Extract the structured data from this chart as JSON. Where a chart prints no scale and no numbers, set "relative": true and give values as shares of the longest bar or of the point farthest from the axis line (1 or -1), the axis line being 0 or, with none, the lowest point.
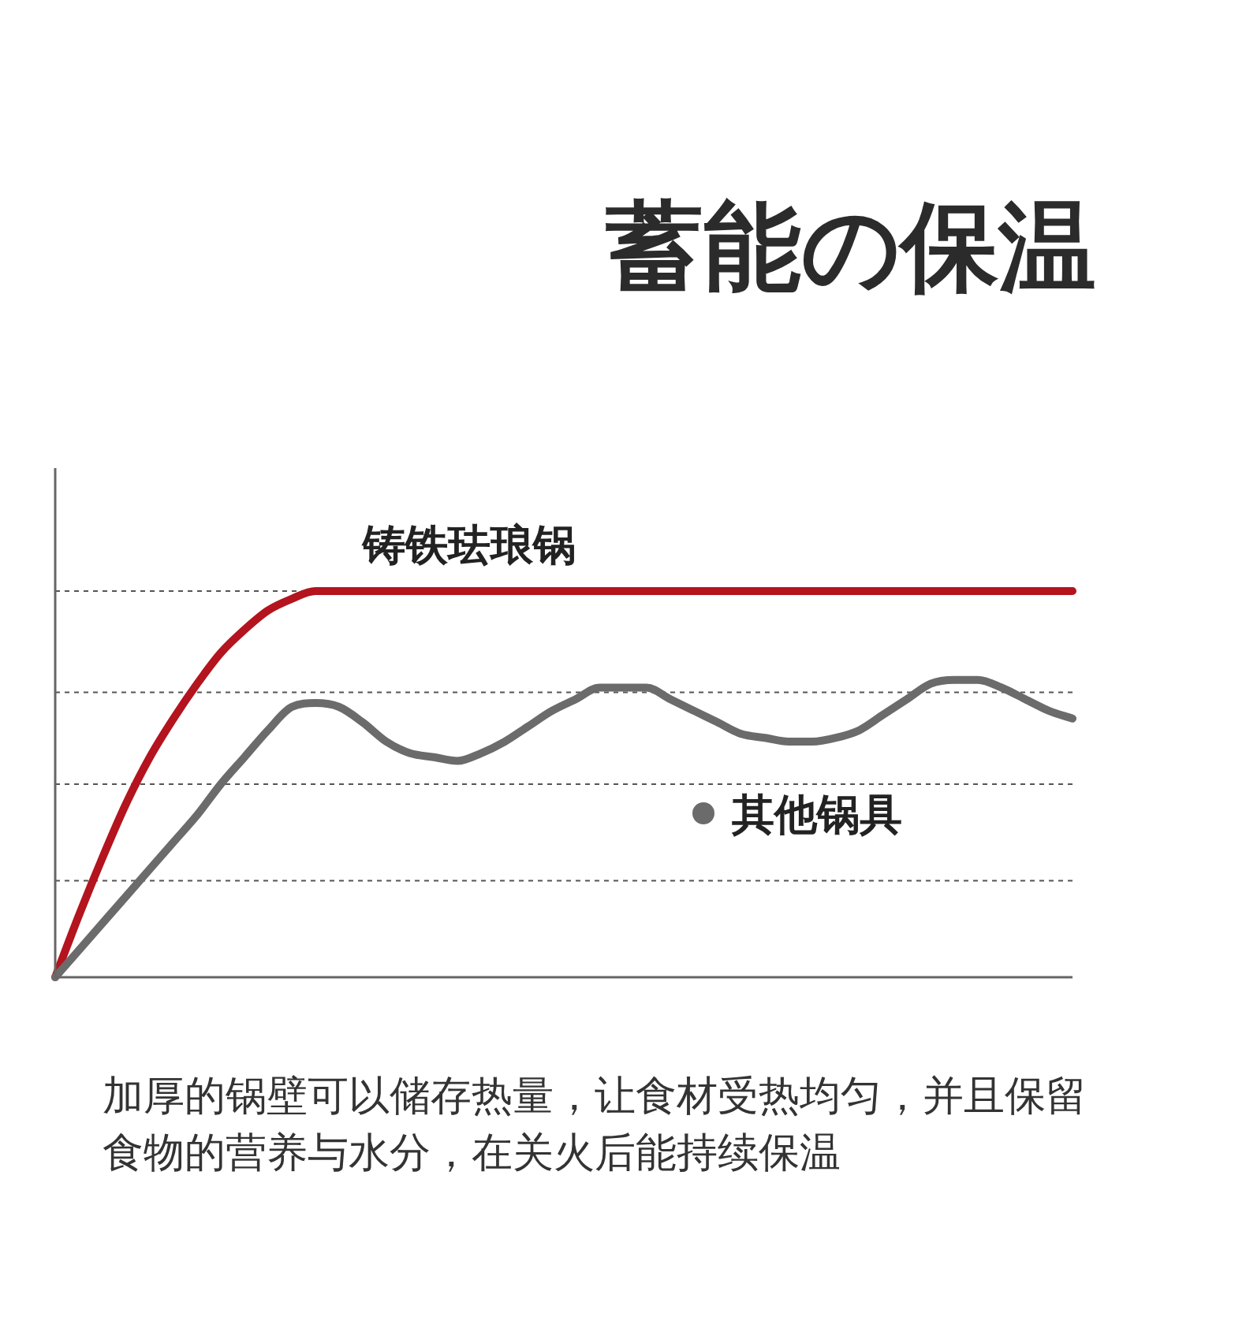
{
  "chart_data": {
    "type": "line",
    "title": "蓄能の保温",
    "relative": true,
    "grid": "y",
    "legend": "right",
    "categories": [
      null,
      null,
      null,
      null,
      null,
      null,
      null,
      null,
      null,
      null,
      null,
      null,
      null,
      null,
      null,
      null,
      null,
      null,
      null,
      null,
      null,
      null,
      null,
      null,
      null,
      null,
      null,
      null,
      null,
      null,
      null,
      null,
      null,
      null,
      null,
      null,
      null,
      null,
      null,
      null,
      null,
      null,
      null,
      null
    ],
    "series": [
      {
        "name": "铸铁珐琅锅",
        "color": "#b3141e",
        "values": [
          0,
          0.16,
          0.31,
          0.45,
          0.57,
          0.67,
          0.76,
          0.84,
          0.9,
          0.95,
          0.98,
          1,
          1,
          1,
          1,
          1,
          1,
          1,
          1,
          1,
          1,
          1,
          1,
          1,
          1,
          1,
          1,
          1,
          1,
          1,
          1,
          1,
          1,
          1,
          1,
          1,
          1,
          1,
          1,
          1,
          1,
          1,
          1,
          1
        ]
      },
      {
        "name": "其他锅具",
        "color": "#6b6b6b",
        "values": [
          0,
          0.07,
          0.14,
          0.21,
          0.28,
          0.35,
          0.42,
          0.5,
          0.57,
          0.64,
          0.7,
          0.71,
          0.7,
          0.66,
          0.61,
          0.58,
          0.57,
          0.56,
          0.58,
          0.61,
          0.65,
          0.69,
          0.72,
          0.75,
          0.75,
          0.75,
          0.72,
          0.69,
          0.66,
          0.63,
          0.62,
          0.61,
          0.61,
          0.62,
          0.64,
          0.68,
          0.72,
          0.76,
          0.77,
          0.77,
          0.75,
          0.72,
          0.69,
          0.67
        ]
      }
    ],
    "annotations": [
      "加厚的锅壁可以储存热量，让食材受热均匀，并且保留食物的营养与水分，在关火后能持续保温"
    ]
  }
}
